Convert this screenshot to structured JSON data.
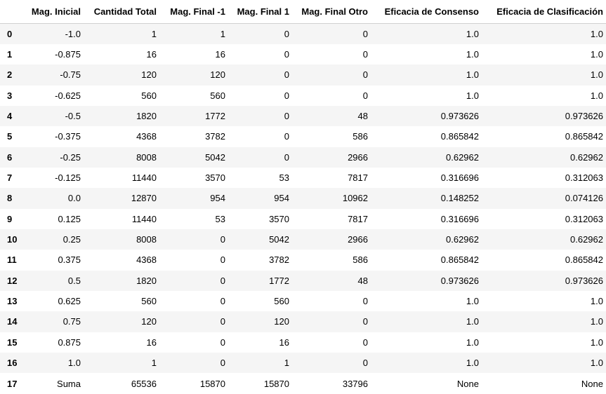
{
  "table": {
    "index_header": "",
    "columns": [
      "Mag. Inicial",
      "Cantidad Total",
      "Mag. Final -1",
      "Mag. Final 1",
      "Mag. Final Otro",
      "Eficacia de Consenso",
      "Eficacia de Clasificación"
    ],
    "rows": [
      {
        "index": "0",
        "cells": [
          "-1.0",
          "1",
          "1",
          "0",
          "0",
          "1.0",
          "1.0"
        ]
      },
      {
        "index": "1",
        "cells": [
          "-0.875",
          "16",
          "16",
          "0",
          "0",
          "1.0",
          "1.0"
        ]
      },
      {
        "index": "2",
        "cells": [
          "-0.75",
          "120",
          "120",
          "0",
          "0",
          "1.0",
          "1.0"
        ]
      },
      {
        "index": "3",
        "cells": [
          "-0.625",
          "560",
          "560",
          "0",
          "0",
          "1.0",
          "1.0"
        ]
      },
      {
        "index": "4",
        "cells": [
          "-0.5",
          "1820",
          "1772",
          "0",
          "48",
          "0.973626",
          "0.973626"
        ]
      },
      {
        "index": "5",
        "cells": [
          "-0.375",
          "4368",
          "3782",
          "0",
          "586",
          "0.865842",
          "0.865842"
        ]
      },
      {
        "index": "6",
        "cells": [
          "-0.25",
          "8008",
          "5042",
          "0",
          "2966",
          "0.62962",
          "0.62962"
        ]
      },
      {
        "index": "7",
        "cells": [
          "-0.125",
          "11440",
          "3570",
          "53",
          "7817",
          "0.316696",
          "0.312063"
        ]
      },
      {
        "index": "8",
        "cells": [
          "0.0",
          "12870",
          "954",
          "954",
          "10962",
          "0.148252",
          "0.074126"
        ]
      },
      {
        "index": "9",
        "cells": [
          "0.125",
          "11440",
          "53",
          "3570",
          "7817",
          "0.316696",
          "0.312063"
        ]
      },
      {
        "index": "10",
        "cells": [
          "0.25",
          "8008",
          "0",
          "5042",
          "2966",
          "0.62962",
          "0.62962"
        ]
      },
      {
        "index": "11",
        "cells": [
          "0.375",
          "4368",
          "0",
          "3782",
          "586",
          "0.865842",
          "0.865842"
        ]
      },
      {
        "index": "12",
        "cells": [
          "0.5",
          "1820",
          "0",
          "1772",
          "48",
          "0.973626",
          "0.973626"
        ]
      },
      {
        "index": "13",
        "cells": [
          "0.625",
          "560",
          "0",
          "560",
          "0",
          "1.0",
          "1.0"
        ]
      },
      {
        "index": "14",
        "cells": [
          "0.75",
          "120",
          "0",
          "120",
          "0",
          "1.0",
          "1.0"
        ]
      },
      {
        "index": "15",
        "cells": [
          "0.875",
          "16",
          "0",
          "16",
          "0",
          "1.0",
          "1.0"
        ]
      },
      {
        "index": "16",
        "cells": [
          "1.0",
          "1",
          "0",
          "1",
          "0",
          "1.0",
          "1.0"
        ]
      },
      {
        "index": "17",
        "cells": [
          "Suma",
          "65536",
          "15870",
          "15870",
          "33796",
          "None",
          "None"
        ]
      }
    ]
  },
  "colors": {
    "stripe": "#f5f5f5",
    "background": "#ffffff",
    "text": "#000000"
  }
}
